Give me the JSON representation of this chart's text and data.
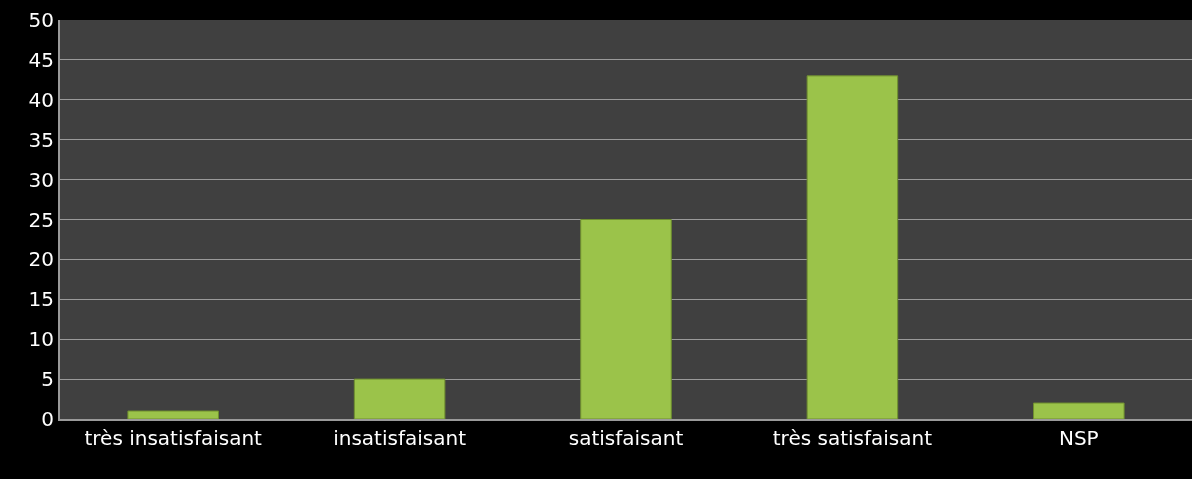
{
  "chart_data": {
    "type": "bar",
    "categories": [
      "très insatisfaisant",
      "insatisfaisant",
      "satisfaisant",
      "très satisfaisant",
      "NSP"
    ],
    "values": [
      1,
      5,
      25,
      43,
      2
    ],
    "color": "#9bc34a",
    "ylim": [
      0,
      50
    ],
    "yticks": [
      0,
      5,
      10,
      15,
      20,
      25,
      30,
      35,
      40,
      45,
      50
    ],
    "grid": "y"
  }
}
